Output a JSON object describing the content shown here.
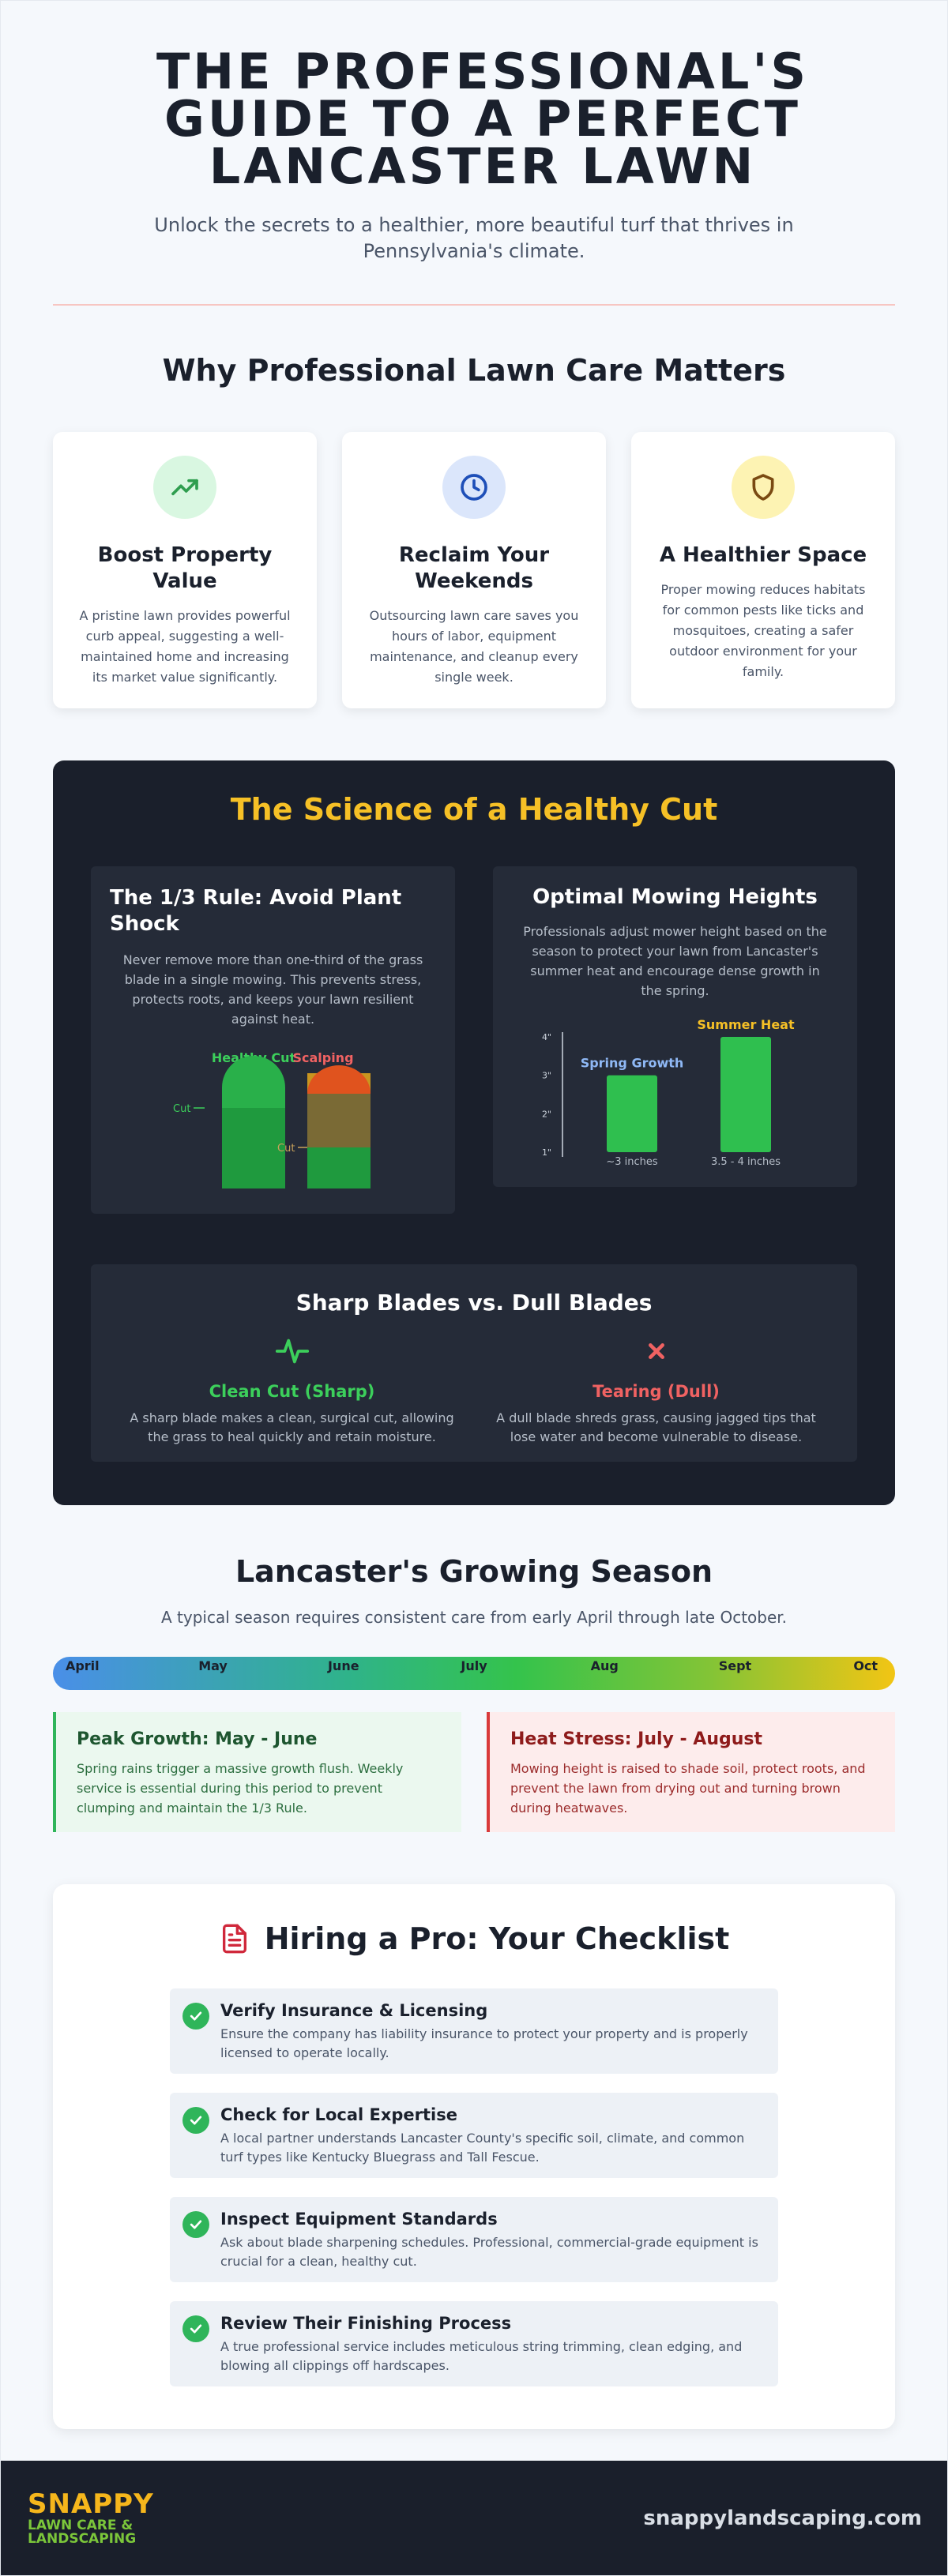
{
  "header": {
    "title": "THE PROFESSIONAL'S GUIDE TO A PERFECT LANCASTER LAWN",
    "subtitle": "Unlock the secrets to a healthier, more beautiful turf that thrives in Pennsylvania's climate."
  },
  "why": {
    "title": "Why Professional Lawn Care Matters",
    "cards": [
      {
        "icon": "trending-up-icon",
        "color": "#2f9e4f",
        "bg": "#d9f7e1",
        "title": "Boost Property Value",
        "text": "A pristine lawn provides powerful curb appeal, suggesting a well-maintained home and increasing its market value significantly."
      },
      {
        "icon": "clock-icon",
        "color": "#1e4fb8",
        "bg": "#dbe6fb",
        "title": "Reclaim Your Weekends",
        "text": "Outsourcing lawn care saves you hours of labor, equipment maintenance, and cleanup every single week."
      },
      {
        "icon": "shield-icon",
        "color": "#7a4a12",
        "bg": "#fdf3b3",
        "title": "A Healthier Space",
        "text": "Proper mowing reduces habitats for common pests like ticks and mosquitoes, creating a safer outdoor environment for your family."
      }
    ]
  },
  "science": {
    "title": "The Science of a Healthy Cut",
    "rule": {
      "title": "The 1/3 Rule: Avoid Plant Shock",
      "text": "Never remove more than one-third of the grass blade in a single mowing. This prevents stress, protects roots, and keeps your lawn resilient against heat.",
      "healthy_label": "Healthy Cut",
      "scalping_label": "Scalping",
      "cut_label": "Cut"
    },
    "heights": {
      "title": "Optimal Mowing Heights",
      "text": "Professionals adjust mower height based on the season to protect your lawn from Lancaster's summer heat and encourage dense growth in the spring."
    },
    "blades": {
      "title": "Sharp Blades vs. Dull Blades",
      "sharp_title": "Clean Cut (Sharp)",
      "sharp_text": "A sharp blade makes a clean, surgical cut, allowing the grass to heal quickly and retain moisture.",
      "dull_title": "Tearing (Dull)",
      "dull_text": "A dull blade shreds grass, causing jagged tips that lose water and become vulnerable to disease."
    }
  },
  "chart_data": {
    "type": "bar",
    "categories": [
      "Spring Growth",
      "Summer Heat"
    ],
    "values": [
      3,
      4
    ],
    "value_labels": [
      "~3 inches",
      "3.5 - 4 inches"
    ],
    "yticks": [
      "1\"",
      "2\"",
      "3\"",
      "4\""
    ],
    "ylim": [
      1,
      4
    ],
    "colors": {
      "bar": "#2fbf4f",
      "spring_label": "#8fb8f5",
      "summer_label": "#f6c026"
    }
  },
  "season": {
    "title": "Lancaster's Growing Season",
    "subtitle": "A typical season requires consistent care from early April through late October.",
    "months": [
      "April",
      "May",
      "June",
      "July",
      "Aug",
      "Sept",
      "Oct"
    ],
    "peak_title": "Peak Growth: May - June",
    "peak_text": "Spring rains trigger a massive growth flush. Weekly service is essential during this period to prevent clumping and maintain the 1/3 Rule.",
    "heat_title": "Heat Stress: July - August",
    "heat_text": "Mowing height is raised to shade soil, protect roots, and prevent the lawn from drying out and turning brown during heatwaves."
  },
  "checklist": {
    "title": "Hiring a Pro: Your Checklist",
    "items": [
      {
        "title": "Verify Insurance & Licensing",
        "text": "Ensure the company has liability insurance to protect your property and is properly licensed to operate locally."
      },
      {
        "title": "Check for Local Expertise",
        "text": "A local partner understands Lancaster County's specific soil, climate, and common turf types like Kentucky Bluegrass and Tall Fescue."
      },
      {
        "title": "Inspect Equipment Standards",
        "text": "Ask about blade sharpening schedules. Professional, commercial-grade equipment is crucial for a clean, healthy cut."
      },
      {
        "title": "Review Their Finishing Process",
        "text": "A true professional service includes meticulous string trimming, clean edging, and blowing all clippings off hardscapes."
      }
    ]
  },
  "footer": {
    "logo_line1": "SNAPPY",
    "logo_line2": "LAWN CARE &",
    "logo_line3": "LANDSCAPING",
    "url": "snappylandscaping.com"
  }
}
